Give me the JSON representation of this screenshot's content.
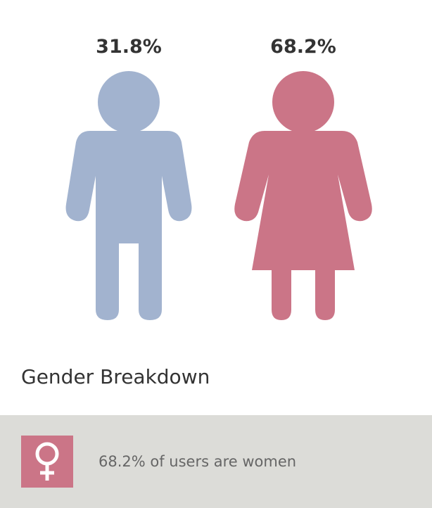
{
  "chart_data": {
    "type": "pictogram",
    "title": "Gender Breakdown",
    "categories": [
      "Male",
      "Female"
    ],
    "values": [
      31.8,
      68.2
    ],
    "value_labels": [
      "31.8%",
      "68.2%"
    ],
    "unit": "%",
    "colors": [
      "#a2b3cf",
      "#cb7587"
    ],
    "icons": [
      "male-figure-icon",
      "female-figure-icon"
    ]
  },
  "footer": {
    "icon": "venus-symbol-icon",
    "icon_color": "#cb7587",
    "text": "68.2% of users are women"
  }
}
